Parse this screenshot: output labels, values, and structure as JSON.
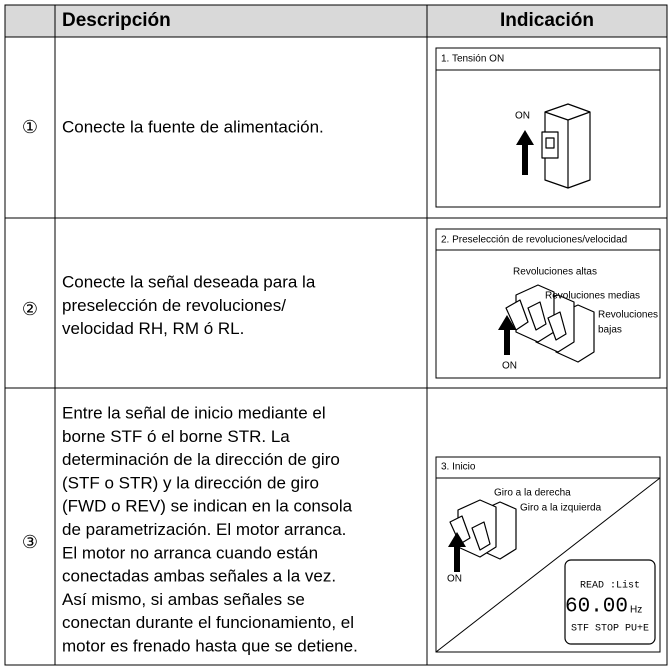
{
  "table": {
    "header": [
      "Descripción",
      "Indicación"
    ],
    "rows": [
      {
        "step": "①",
        "description": [
          "Conecte la fuente de alimentación."
        ],
        "illustration": {
          "title": "1. Tensión ON",
          "labels": [
            "ON"
          ]
        }
      },
      {
        "step": "②",
        "description": [
          "Conecte la señal deseada para la",
          "preselección de revoluciones/",
          "velocidad RH, RM ó RL."
        ],
        "illustration": {
          "title": "2. Preselección de revoluciones/velocidad",
          "labels": [
            "Revoluciones altas",
            "Revoluciones medias",
            "Revoluciones",
            "bajas",
            "ON"
          ]
        }
      },
      {
        "step": "③",
        "description": [
          "Entre la señal de inicio mediante el",
          "borne STF ó el borne STR. La",
          "determinación de la dirección de giro",
          "(STF o STR) y la dirección de giro",
          "(FWD o REV) se indican en la consola",
          "de parametrización. El motor arranca.",
          "El motor no arranca cuando están",
          "conectadas ambas señales a la vez.",
          "Así mismo, si ambas señales se",
          "conectan durante el funcionamiento, el",
          "motor es frenado hasta que se detiene."
        ],
        "illustration": {
          "title": "3. Inicio",
          "labels": [
            "Giro a la derecha",
            "Giro a la izquierda",
            "ON"
          ],
          "display": {
            "status": "READ :List",
            "reading": "60.00",
            "unit": "Hz",
            "footer": "STF STOP PU+E"
          }
        }
      }
    ]
  }
}
